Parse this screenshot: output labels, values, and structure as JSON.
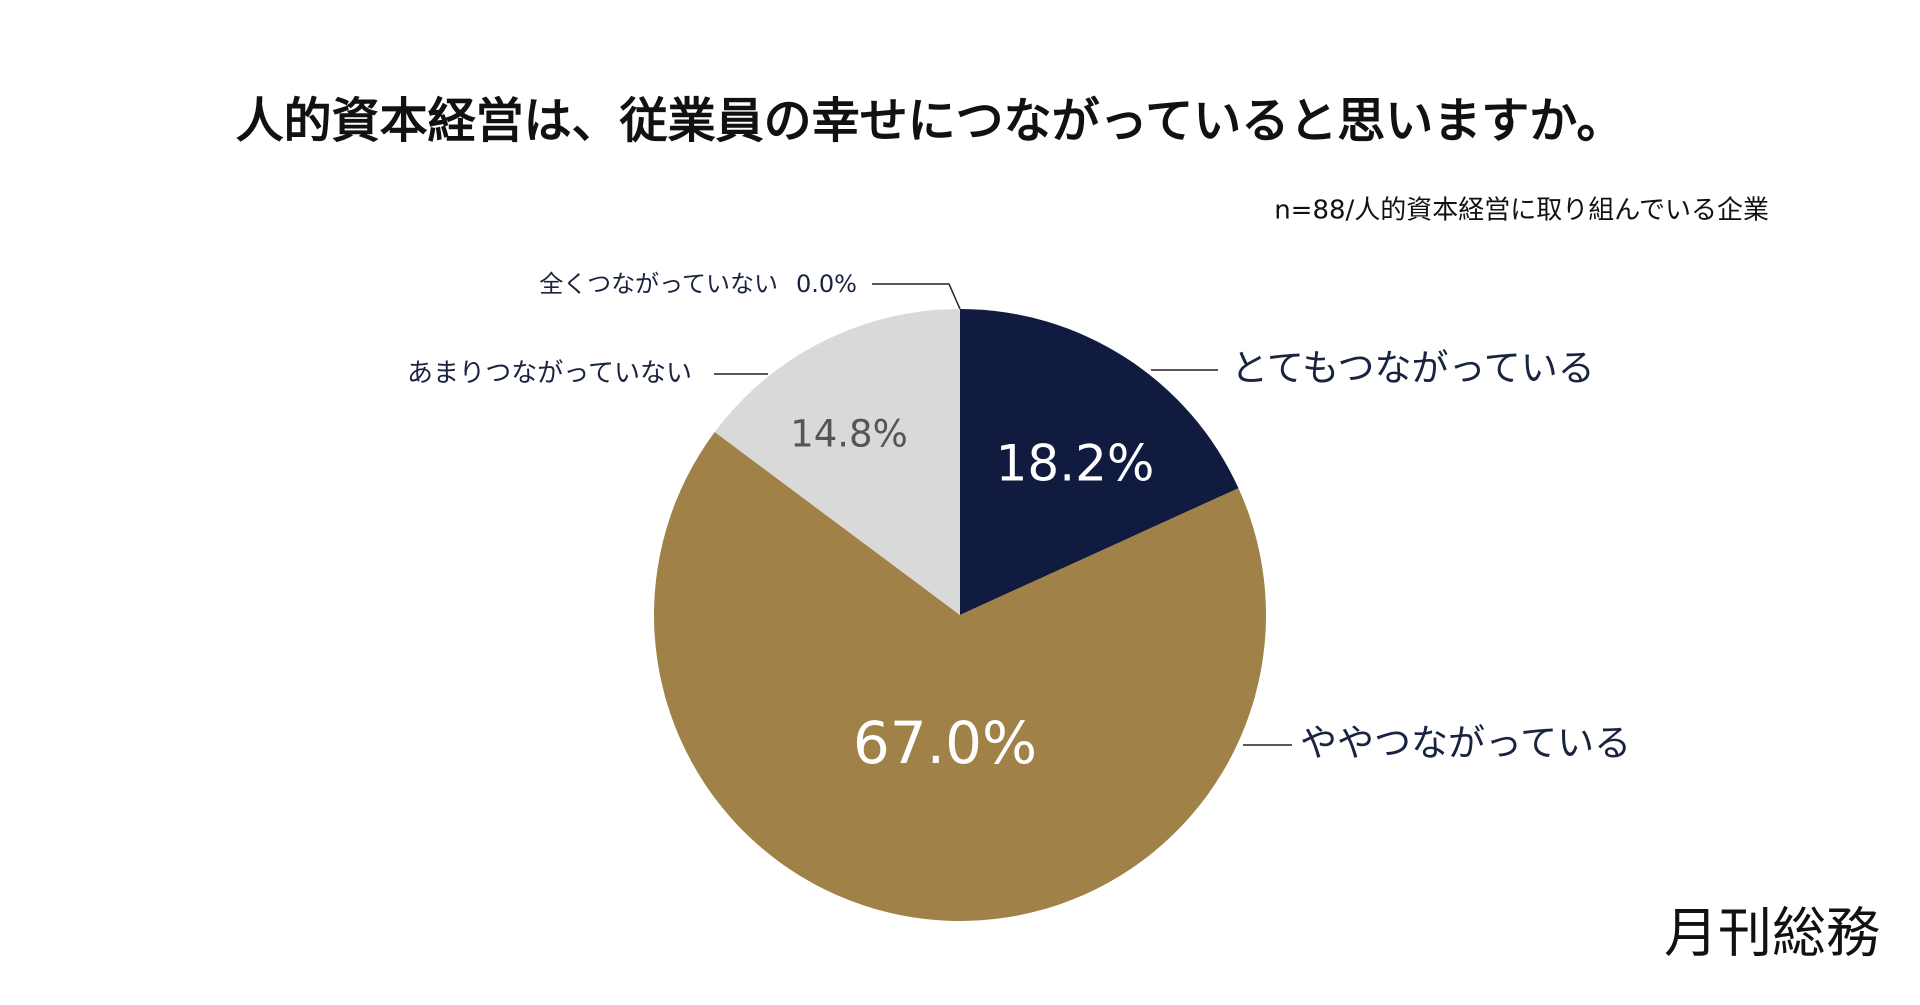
{
  "chart_data": {
    "type": "pie",
    "title": "人的資本経営は、従業員の幸せにつながっていると思いますか。",
    "subtitle": "n=88/人的資本経営に取り組んでいる企業",
    "categories": [
      "とてもつながっている",
      "ややつながっている",
      "あまりつながっていない",
      "全くつながっていない"
    ],
    "values": [
      18.2,
      67.0,
      14.8,
      0.0
    ],
    "value_labels": [
      "18.2%",
      "67.0%",
      "14.8%",
      "0.0%"
    ],
    "colors": [
      "#101b3f",
      "#a08248",
      "#d9d9d9",
      "#bfbfbf"
    ],
    "brand": "月刊総務"
  }
}
